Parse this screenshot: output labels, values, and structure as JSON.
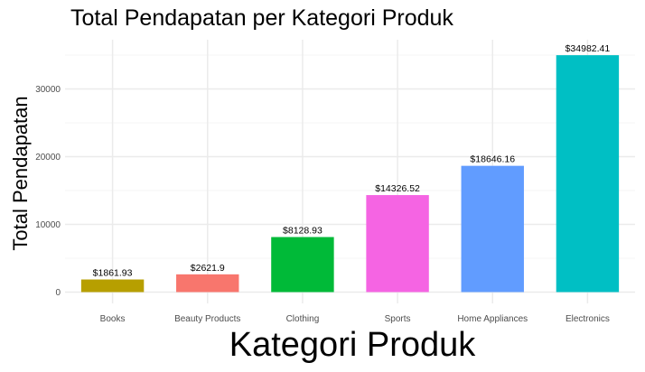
{
  "chart_data": {
    "type": "bar",
    "title": "Total Pendapatan per Kategori Produk",
    "xlabel": "Kategori Produk",
    "ylabel": "Total Pendapatan",
    "categories": [
      "Books",
      "Beauty Products",
      "Clothing",
      "Sports",
      "Home Appliances",
      "Electronics"
    ],
    "values": [
      1861.93,
      2621.9,
      8128.93,
      14326.52,
      18646.16,
      34982.41
    ],
    "data_labels": [
      "$1861.93",
      "$2621.9",
      "$8128.93",
      "$14326.52",
      "$18646.16",
      "$34982.41"
    ],
    "colors": [
      "#B79F00",
      "#F8766D",
      "#00BA38",
      "#F564E3",
      "#619CFF",
      "#00BFC4"
    ],
    "yticks": [
      0,
      10000,
      20000,
      30000
    ],
    "ylim": [
      0,
      35000
    ],
    "grid": true,
    "legend": "none"
  }
}
